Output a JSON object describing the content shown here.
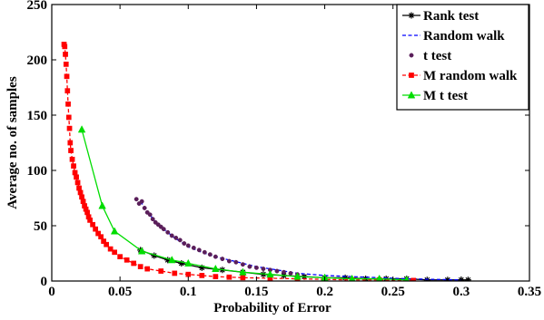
{
  "chart_data": {
    "type": "scatter",
    "title": "",
    "xlabel": "Probability of Error",
    "ylabel": "Average no. of samples",
    "xlim": [
      0,
      0.35
    ],
    "ylim": [
      0,
      250
    ],
    "xticks": [
      0,
      0.05,
      0.1,
      0.15,
      0.2,
      0.25,
      0.3,
      0.35
    ],
    "xtick_labels": [
      "0",
      "0.05",
      "0.1",
      "0.15",
      "0.2",
      "0.25",
      "0.3",
      "0.35"
    ],
    "yticks": [
      0,
      50,
      100,
      150,
      200,
      250
    ],
    "ytick_labels": [
      "0",
      "50",
      "100",
      "150",
      "200",
      "250"
    ],
    "grid": false,
    "legend_position": "top-right",
    "series": [
      {
        "name": "Rank test",
        "color": "#000000",
        "line": "solid",
        "marker": "star",
        "x": [
          0.065,
          0.075,
          0.085,
          0.095,
          0.11,
          0.125,
          0.14,
          0.155,
          0.17,
          0.185,
          0.2,
          0.215,
          0.23,
          0.245,
          0.26,
          0.275,
          0.29,
          0.3,
          0.305
        ],
        "y": [
          28,
          23,
          19,
          16,
          12,
          10,
          8,
          6,
          5,
          4,
          3,
          3,
          2,
          2,
          2,
          1,
          1,
          1,
          1
        ]
      },
      {
        "name": "Random walk",
        "color": "#0000ff",
        "line": "dashed",
        "marker": "none",
        "x": [
          0.065,
          0.07,
          0.075,
          0.08,
          0.085,
          0.09,
          0.095,
          0.1,
          0.11,
          0.12,
          0.13,
          0.14,
          0.15,
          0.16,
          0.17,
          0.18,
          0.19,
          0.2,
          0.22,
          0.24,
          0.26,
          0.28,
          0.3
        ],
        "y": [
          72,
          63,
          55,
          49,
          44,
          39,
          35,
          31,
          26,
          22,
          19,
          16,
          13,
          11,
          9,
          7,
          6,
          5,
          4,
          3,
          2,
          1.5,
          1
        ]
      },
      {
        "name": "t test",
        "color": "#5a1e5a",
        "line": "none",
        "marker": "circle",
        "x": [
          0.062,
          0.064,
          0.066,
          0.068,
          0.07,
          0.072,
          0.074,
          0.076,
          0.078,
          0.08,
          0.082,
          0.085,
          0.088,
          0.091,
          0.094,
          0.097,
          0.1,
          0.104,
          0.108,
          0.112,
          0.116,
          0.12,
          0.125,
          0.13,
          0.135,
          0.14,
          0.145,
          0.15,
          0.155,
          0.16,
          0.165,
          0.17,
          0.175,
          0.18
        ],
        "y": [
          74,
          70,
          72,
          66,
          62,
          60,
          56,
          53,
          51,
          49,
          47,
          44,
          41,
          39,
          37,
          34,
          32,
          30,
          28,
          26,
          24,
          22,
          20,
          18,
          17,
          15,
          13,
          12,
          11,
          10,
          9,
          8,
          7,
          6
        ]
      },
      {
        "name": "M random walk",
        "color": "#ff0000",
        "line": "dashed",
        "marker": "square",
        "x": [
          0.009,
          0.0095,
          0.01,
          0.0105,
          0.011,
          0.0115,
          0.012,
          0.0125,
          0.013,
          0.0135,
          0.014,
          0.015,
          0.016,
          0.017,
          0.018,
          0.019,
          0.02,
          0.021,
          0.022,
          0.023,
          0.024,
          0.025,
          0.026,
          0.027,
          0.028,
          0.03,
          0.032,
          0.034,
          0.036,
          0.038,
          0.04,
          0.043,
          0.046,
          0.05,
          0.055,
          0.06,
          0.065,
          0.07,
          0.08,
          0.09,
          0.1,
          0.11,
          0.12,
          0.13,
          0.14,
          0.16,
          0.18,
          0.2,
          0.22,
          0.24,
          0.265
        ],
        "y": [
          214,
          212,
          205,
          196,
          185,
          172,
          160,
          148,
          138,
          125,
          118,
          110,
          104,
          98,
          94,
          89,
          84,
          80,
          76,
          72,
          68,
          65,
          62,
          58,
          55,
          51,
          47,
          43,
          40,
          36,
          33,
          29,
          26,
          22,
          19,
          16,
          13,
          11,
          9,
          7,
          6,
          5,
          4,
          3.5,
          3,
          2.5,
          2,
          1.5,
          1,
          1,
          0.5
        ]
      },
      {
        "name": "M t test",
        "color": "#00dd00",
        "line": "solid",
        "marker": "triangle",
        "x": [
          0.022,
          0.037,
          0.046,
          0.066,
          0.088,
          0.1,
          0.12,
          0.14,
          0.16,
          0.18,
          0.2,
          0.22,
          0.24,
          0.26
        ],
        "y": [
          137,
          68,
          45,
          27,
          19,
          16,
          11,
          8,
          6,
          4,
          3,
          2,
          2,
          1
        ]
      }
    ]
  }
}
